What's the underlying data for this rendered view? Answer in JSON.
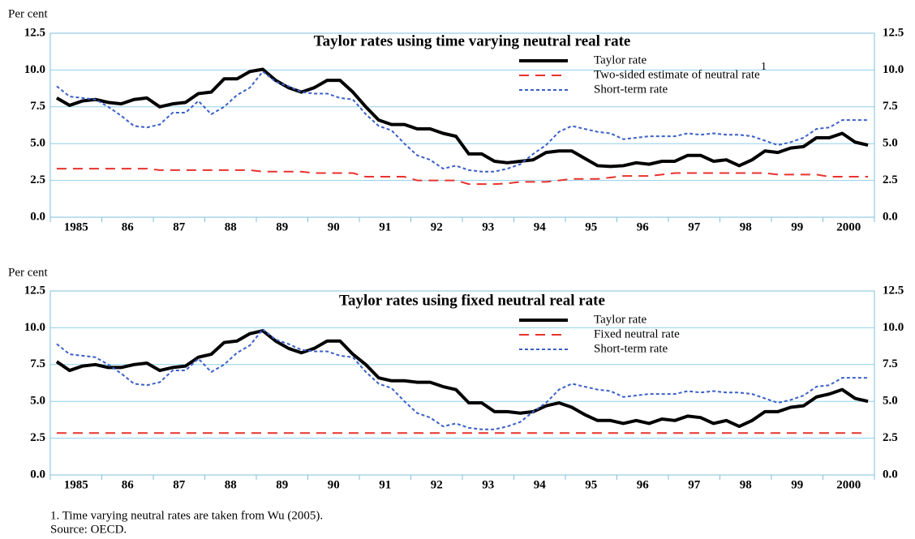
{
  "chart_data": [
    {
      "type": "line",
      "title": "Taylor rates using time varying neutral real rate",
      "ylabel": "Per cent",
      "categories": [
        null,
        "1985",
        null,
        null,
        null,
        "86",
        null,
        null,
        null,
        "87",
        null,
        null,
        null,
        "88",
        null,
        null,
        null,
        "89",
        null,
        null,
        null,
        "90",
        null,
        null,
        null,
        "91",
        null,
        null,
        null,
        "92",
        null,
        null,
        null,
        "93",
        null,
        null,
        null,
        "94",
        null,
        null,
        null,
        "95",
        null,
        null,
        null,
        "96",
        null,
        null,
        null,
        "97",
        null,
        null,
        null,
        "98",
        null,
        null,
        null,
        "99",
        null,
        null,
        null,
        "2000",
        null,
        null
      ],
      "ylim": [
        0,
        12.5
      ],
      "yticks": [
        {
          "value": 0,
          "label": "0.0"
        },
        2.5,
        {
          "value": 5,
          "label": "5.0"
        },
        7.5,
        {
          "value": 10,
          "label": "10.0"
        },
        12.5
      ],
      "y2lim": [
        0,
        12.5
      ],
      "y2ticks": [
        {
          "value": 0,
          "label": "0.0"
        },
        2.5,
        {
          "value": 5,
          "label": "5.0"
        },
        7.5,
        {
          "value": 10,
          "label": "10.0"
        },
        12.5
      ],
      "grid": true,
      "series": [
        {
          "name": "Taylor rate",
          "color": "#000000",
          "style": "solid",
          "values": [
            8.1,
            7.6,
            7.9,
            8.0,
            7.8,
            7.7,
            8.0,
            8.1,
            7.5,
            7.7,
            7.8,
            8.4,
            8.5,
            9.4,
            9.4,
            9.9,
            10.05,
            9.3,
            8.8,
            8.5,
            8.8,
            9.3,
            9.3,
            8.5,
            7.5,
            6.6,
            6.3,
            6.3,
            6.0,
            6.0,
            5.7,
            5.5,
            4.3,
            4.3,
            3.8,
            3.7,
            3.8,
            3.9,
            4.4,
            4.5,
            4.5,
            4.0,
            3.5,
            3.45,
            3.5,
            3.7,
            3.6,
            3.8,
            3.8,
            4.2,
            4.2,
            3.8,
            3.9,
            3.5,
            3.9,
            4.5,
            4.4,
            4.7,
            4.8,
            5.4,
            5.4,
            5.7,
            5.1,
            4.9
          ]
        },
        {
          "name": "Two-sided estimate of neutral rate",
          "name_note": "1",
          "color": "#e8322d",
          "style": "dashed",
          "values": [
            3.3,
            3.3,
            3.3,
            3.3,
            3.3,
            3.3,
            3.3,
            3.3,
            3.2,
            3.2,
            3.2,
            3.2,
            3.2,
            3.2,
            3.2,
            3.2,
            3.1,
            3.1,
            3.1,
            3.1,
            3.0,
            3.0,
            3.0,
            3.0,
            2.75,
            2.75,
            2.75,
            2.75,
            2.5,
            2.5,
            2.5,
            2.5,
            2.25,
            2.25,
            2.25,
            2.3,
            2.4,
            2.4,
            2.4,
            2.5,
            2.6,
            2.6,
            2.6,
            2.7,
            2.8,
            2.8,
            2.8,
            2.9,
            3.0,
            3.0,
            3.0,
            3.0,
            3.0,
            3.0,
            3.0,
            3.0,
            2.9,
            2.9,
            2.9,
            2.9,
            2.75,
            2.75,
            2.75,
            2.75
          ]
        },
        {
          "name": "Short-term rate",
          "color": "#3a5fc8",
          "style": "dotted",
          "values": [
            8.9,
            8.2,
            8.1,
            8.0,
            7.5,
            6.9,
            6.2,
            6.1,
            6.3,
            7.1,
            7.1,
            7.9,
            7.0,
            7.5,
            8.3,
            8.8,
            9.9,
            9.2,
            8.9,
            8.5,
            8.4,
            8.4,
            8.1,
            8.0,
            7.0,
            6.2,
            5.9,
            5.0,
            4.2,
            3.9,
            3.3,
            3.5,
            3.2,
            3.1,
            3.1,
            3.3,
            3.6,
            4.3,
            4.9,
            5.8,
            6.2,
            6.0,
            5.8,
            5.7,
            5.3,
            5.4,
            5.5,
            5.5,
            5.5,
            5.7,
            5.6,
            5.7,
            5.6,
            5.6,
            5.5,
            5.2,
            4.9,
            5.1,
            5.4,
            6.0,
            6.1,
            6.6,
            6.6,
            6.6
          ]
        }
      ]
    },
    {
      "type": "line",
      "title": "Taylor rates using fixed neutral real rate",
      "ylabel": "Per cent",
      "categories": [
        null,
        "1985",
        null,
        null,
        null,
        "86",
        null,
        null,
        null,
        "87",
        null,
        null,
        null,
        "88",
        null,
        null,
        null,
        "89",
        null,
        null,
        null,
        "90",
        null,
        null,
        null,
        "91",
        null,
        null,
        null,
        "92",
        null,
        null,
        null,
        "93",
        null,
        null,
        null,
        "94",
        null,
        null,
        null,
        "95",
        null,
        null,
        null,
        "96",
        null,
        null,
        null,
        "97",
        null,
        null,
        null,
        "98",
        null,
        null,
        null,
        "99",
        null,
        null,
        null,
        "2000",
        null,
        null
      ],
      "ylim": [
        0,
        12.5
      ],
      "yticks": [
        {
          "value": 0,
          "label": "0.0"
        },
        2.5,
        {
          "value": 5,
          "label": "5.0"
        },
        7.5,
        {
          "value": 10,
          "label": "10.0"
        },
        12.5
      ],
      "y2lim": [
        0,
        12.5
      ],
      "y2ticks": [
        {
          "value": 0,
          "label": "0.0"
        },
        2.5,
        {
          "value": 5,
          "label": "5.0"
        },
        7.5,
        {
          "value": 10,
          "label": "10.0"
        },
        12.5
      ],
      "grid": true,
      "series": [
        {
          "name": "Taylor rate",
          "color": "#000000",
          "style": "solid",
          "values": [
            7.7,
            7.1,
            7.4,
            7.5,
            7.3,
            7.3,
            7.5,
            7.6,
            7.1,
            7.3,
            7.4,
            8.0,
            8.2,
            9.0,
            9.1,
            9.6,
            9.8,
            9.1,
            8.6,
            8.3,
            8.6,
            9.1,
            9.1,
            8.2,
            7.5,
            6.6,
            6.4,
            6.4,
            6.3,
            6.3,
            6.0,
            5.8,
            4.9,
            4.9,
            4.3,
            4.3,
            4.2,
            4.3,
            4.7,
            4.9,
            4.6,
            4.1,
            3.7,
            3.7,
            3.5,
            3.7,
            3.5,
            3.8,
            3.7,
            4.0,
            3.9,
            3.5,
            3.7,
            3.3,
            3.7,
            4.3,
            4.3,
            4.6,
            4.7,
            5.3,
            5.5,
            5.8,
            5.2,
            5.0
          ]
        },
        {
          "name": "Fixed neutral rate",
          "color": "#e8322d",
          "style": "dashed",
          "values": [
            2.85,
            2.85,
            2.85,
            2.85,
            2.85,
            2.85,
            2.85,
            2.85,
            2.85,
            2.85,
            2.85,
            2.85,
            2.85,
            2.85,
            2.85,
            2.85,
            2.85,
            2.85,
            2.85,
            2.85,
            2.85,
            2.85,
            2.85,
            2.85,
            2.85,
            2.85,
            2.85,
            2.85,
            2.85,
            2.85,
            2.85,
            2.85,
            2.85,
            2.85,
            2.85,
            2.85,
            2.85,
            2.85,
            2.85,
            2.85,
            2.85,
            2.85,
            2.85,
            2.85,
            2.85,
            2.85,
            2.85,
            2.85,
            2.85,
            2.85,
            2.85,
            2.85,
            2.85,
            2.85,
            2.85,
            2.85,
            2.85,
            2.85,
            2.85,
            2.85,
            2.85,
            2.85,
            2.85,
            2.85
          ]
        },
        {
          "name": "Short-term rate",
          "color": "#3a5fc8",
          "style": "dotted",
          "values": [
            8.9,
            8.2,
            8.1,
            8.0,
            7.5,
            6.9,
            6.2,
            6.1,
            6.3,
            7.1,
            7.1,
            7.9,
            7.0,
            7.5,
            8.3,
            8.8,
            9.9,
            9.2,
            8.9,
            8.5,
            8.4,
            8.4,
            8.1,
            8.0,
            7.0,
            6.2,
            5.9,
            5.0,
            4.2,
            3.9,
            3.3,
            3.5,
            3.2,
            3.1,
            3.1,
            3.3,
            3.6,
            4.3,
            4.9,
            5.8,
            6.2,
            6.0,
            5.8,
            5.7,
            5.3,
            5.4,
            5.5,
            5.5,
            5.5,
            5.7,
            5.6,
            5.7,
            5.6,
            5.6,
            5.5,
            5.2,
            4.9,
            5.1,
            5.4,
            6.0,
            6.1,
            6.6,
            6.6,
            6.6
          ]
        }
      ]
    }
  ],
  "footnotes": [
    "1. Time varying neutral rates are taken from Wu (2005).",
    "Source:  OECD."
  ]
}
